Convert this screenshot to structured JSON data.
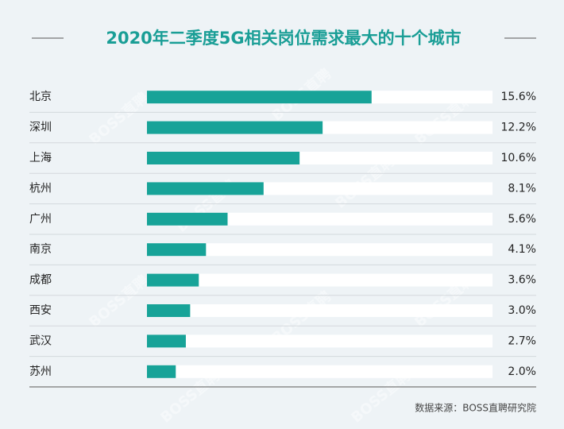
{
  "chart_data": {
    "type": "hbar",
    "title": "2020年二季度5G相关岗位需求最大的十个城市",
    "categories": [
      "北京",
      "深圳",
      "上海",
      "杭州",
      "广州",
      "南京",
      "成都",
      "西安",
      "武汉",
      "苏州"
    ],
    "values": [
      15.6,
      12.2,
      10.6,
      8.1,
      5.6,
      4.1,
      3.6,
      3.0,
      2.7,
      2.0
    ],
    "value_labels": [
      "15.6%",
      "12.2%",
      "10.6%",
      "8.1%",
      "5.6%",
      "4.1%",
      "3.6%",
      "3.0%",
      "2.7%",
      "2.0%"
    ],
    "color": "#17a398",
    "xlim": [
      0,
      24
    ],
    "source": "数据来源：BOSS直聘研究院",
    "watermark": "BOSS直聘"
  }
}
